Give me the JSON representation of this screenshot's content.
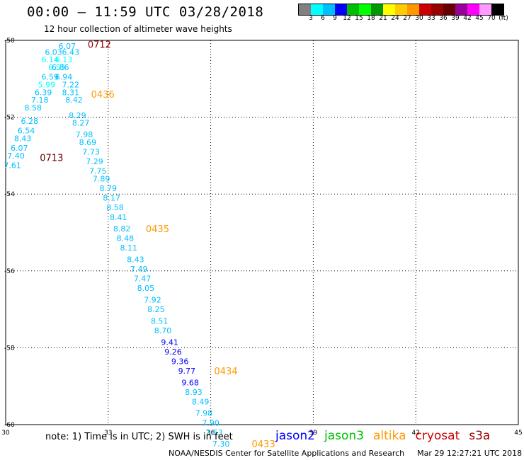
{
  "header": {
    "title": "00:00 – 11:59 UTC 03/28/2018",
    "subtitle": "12 hour collection of altimeter wave heights"
  },
  "colorbar": {
    "colors": [
      "#808080",
      "#00ffff",
      "#00bfff",
      "#0000ff",
      "#00bf00",
      "#00ff00",
      "#009900",
      "#ffff00",
      "#ffcc00",
      "#ff9900",
      "#cc0000",
      "#990000",
      "#660000",
      "#990099",
      "#ff00ff",
      "#ff99ff",
      "#000000"
    ],
    "labels": [
      "3",
      "6",
      "9",
      "12",
      "15",
      "18",
      "21",
      "24",
      "27",
      "30",
      "33",
      "36",
      "39",
      "42",
      "45",
      "70"
    ],
    "unit": "(ft)"
  },
  "note": "note:  1) Time is in UTC;  2) SWH is in feet",
  "legend": [
    {
      "name": "jason2",
      "color": "#0000ff"
    },
    {
      "name": "jason3",
      "color": "#00bf00"
    },
    {
      "name": "altika",
      "color": "#ff9900"
    },
    {
      "name": "cryosat",
      "color": "#cc0000"
    },
    {
      "name": "s3a",
      "color": "#990000"
    }
  ],
  "footer": {
    "credit": "NOAA/NESDIS Center for Satellite Applications and Research",
    "timestamp": "Mar 29 12:27:21 UTC 2018"
  },
  "chart_data": {
    "type": "scatter",
    "title": "12 hour collection of altimeter wave heights",
    "xlim": [
      30,
      45
    ],
    "ylim": [
      -60,
      -50
    ],
    "xticks": [
      30,
      33,
      36,
      39,
      42,
      45
    ],
    "yticks": [
      -50,
      -52,
      -54,
      -56,
      -58,
      -60
    ],
    "grid": true,
    "points": [
      {
        "lon": 31.8,
        "lat": -50.15,
        "swh": "6.07",
        "c": "#00bfff"
      },
      {
        "lon": 31.4,
        "lat": -50.3,
        "swh": "6.03",
        "c": "#00bfff"
      },
      {
        "lon": 31.9,
        "lat": -50.3,
        "swh": "6.43",
        "c": "#00bfff"
      },
      {
        "lon": 31.3,
        "lat": -50.5,
        "swh": "6.14",
        "c": "#00ffff"
      },
      {
        "lon": 31.7,
        "lat": -50.5,
        "swh": "6.13",
        "c": "#00ffff"
      },
      {
        "lon": 31.5,
        "lat": -50.7,
        "swh": "6.55",
        "c": "#00ffff"
      },
      {
        "lon": 31.6,
        "lat": -50.7,
        "swh": "6.86",
        "c": "#00bfff"
      },
      {
        "lon": 31.3,
        "lat": -50.95,
        "swh": "6.59",
        "c": "#00bfff"
      },
      {
        "lon": 31.7,
        "lat": -50.95,
        "swh": "6.94",
        "c": "#00bfff"
      },
      {
        "lon": 31.2,
        "lat": -51.15,
        "swh": "5.99",
        "c": "#00ffff"
      },
      {
        "lon": 31.9,
        "lat": -51.15,
        "swh": "7.22",
        "c": "#00bfff"
      },
      {
        "lon": 31.1,
        "lat": -51.35,
        "swh": "6.39",
        "c": "#00bfff"
      },
      {
        "lon": 31.9,
        "lat": -51.35,
        "swh": "8.31",
        "c": "#00bfff"
      },
      {
        "lon": 31.0,
        "lat": -51.55,
        "swh": "7.18",
        "c": "#00bfff"
      },
      {
        "lon": 32.0,
        "lat": -51.55,
        "swh": "8.42",
        "c": "#00bfff"
      },
      {
        "lon": 30.8,
        "lat": -51.75,
        "swh": "8.58",
        "c": "#00bfff"
      },
      {
        "lon": 32.1,
        "lat": -51.95,
        "swh": "8.29",
        "c": "#00bfff"
      },
      {
        "lon": 30.7,
        "lat": -52.1,
        "swh": "6.28",
        "c": "#00bfff"
      },
      {
        "lon": 32.2,
        "lat": -52.15,
        "swh": "8.27",
        "c": "#00bfff"
      },
      {
        "lon": 30.6,
        "lat": -52.35,
        "swh": "6.54",
        "c": "#00bfff"
      },
      {
        "lon": 32.3,
        "lat": -52.45,
        "swh": "7.98",
        "c": "#00bfff"
      },
      {
        "lon": 30.5,
        "lat": -52.55,
        "swh": "8.43",
        "c": "#00bfff"
      },
      {
        "lon": 32.4,
        "lat": -52.65,
        "swh": "8.69",
        "c": "#00bfff"
      },
      {
        "lon": 30.4,
        "lat": -52.8,
        "swh": "6.07",
        "c": "#00bfff"
      },
      {
        "lon": 32.5,
        "lat": -52.9,
        "swh": "7.73",
        "c": "#00bfff"
      },
      {
        "lon": 30.3,
        "lat": -53.0,
        "swh": "7.40",
        "c": "#00bfff"
      },
      {
        "lon": 32.6,
        "lat": -53.15,
        "swh": "7.29",
        "c": "#00bfff"
      },
      {
        "lon": 30.2,
        "lat": -53.25,
        "swh": "7.61",
        "c": "#00bfff"
      },
      {
        "lon": 32.7,
        "lat": -53.4,
        "swh": "7.75",
        "c": "#00bfff"
      },
      {
        "lon": 32.8,
        "lat": -53.6,
        "swh": "7.89",
        "c": "#00bfff"
      },
      {
        "lon": 33.0,
        "lat": -53.85,
        "swh": "8.79",
        "c": "#00bfff"
      },
      {
        "lon": 33.1,
        "lat": -54.1,
        "swh": "8.17",
        "c": "#00bfff"
      },
      {
        "lon": 33.2,
        "lat": -54.35,
        "swh": "8.58",
        "c": "#00bfff"
      },
      {
        "lon": 33.3,
        "lat": -54.6,
        "swh": "8.41",
        "c": "#00bfff"
      },
      {
        "lon": 33.4,
        "lat": -54.9,
        "swh": "8.82",
        "c": "#00bfff"
      },
      {
        "lon": 33.5,
        "lat": -55.15,
        "swh": "8.48",
        "c": "#00bfff"
      },
      {
        "lon": 33.6,
        "lat": -55.4,
        "swh": "8.11",
        "c": "#00bfff"
      },
      {
        "lon": 33.8,
        "lat": -55.7,
        "swh": "8.43",
        "c": "#00bfff"
      },
      {
        "lon": 33.9,
        "lat": -55.95,
        "swh": "7.49",
        "c": "#00bfff"
      },
      {
        "lon": 34.0,
        "lat": -56.2,
        "swh": "7.47",
        "c": "#00bfff"
      },
      {
        "lon": 34.1,
        "lat": -56.45,
        "swh": "8.05",
        "c": "#00bfff"
      },
      {
        "lon": 34.3,
        "lat": -56.75,
        "swh": "7.92",
        "c": "#00bfff"
      },
      {
        "lon": 34.4,
        "lat": -57.0,
        "swh": "8.25",
        "c": "#00bfff"
      },
      {
        "lon": 34.5,
        "lat": -57.3,
        "swh": "8.51",
        "c": "#00bfff"
      },
      {
        "lon": 34.6,
        "lat": -57.55,
        "swh": "8.70",
        "c": "#00bfff"
      },
      {
        "lon": 34.8,
        "lat": -57.85,
        "swh": "9.41",
        "c": "#0000ff"
      },
      {
        "lon": 34.9,
        "lat": -58.1,
        "swh": "9.26",
        "c": "#0000ff"
      },
      {
        "lon": 35.1,
        "lat": -58.35,
        "swh": "9.36",
        "c": "#0000ff"
      },
      {
        "lon": 35.3,
        "lat": -58.6,
        "swh": "9.77",
        "c": "#0000ff"
      },
      {
        "lon": 35.4,
        "lat": -58.9,
        "swh": "9.68",
        "c": "#0000ff"
      },
      {
        "lon": 35.5,
        "lat": -59.15,
        "swh": "8.93",
        "c": "#00bfff"
      },
      {
        "lon": 35.7,
        "lat": -59.4,
        "swh": "8.49",
        "c": "#00bfff"
      },
      {
        "lon": 35.8,
        "lat": -59.7,
        "swh": "7.98",
        "c": "#00bfff"
      },
      {
        "lon": 36.0,
        "lat": -59.95,
        "swh": "7.90",
        "c": "#00bfff"
      },
      {
        "lon": 36.1,
        "lat": -60.2,
        "swh": "7.63",
        "c": "#00bfff"
      },
      {
        "lon": 36.3,
        "lat": -60.5,
        "swh": "7.30",
        "c": "#00bfff"
      }
    ],
    "time_labels": [
      {
        "lon": 32.4,
        "lat": -50.1,
        "text": "0712",
        "c": "#990000"
      },
      {
        "lon": 32.5,
        "lat": -51.4,
        "text": "0436",
        "c": "#ff9900"
      },
      {
        "lon": 31.0,
        "lat": -53.05,
        "text": "0713",
        "c": "#660000"
      },
      {
        "lon": 34.1,
        "lat": -54.9,
        "text": "0435",
        "c": "#ff9900"
      },
      {
        "lon": 36.1,
        "lat": -58.6,
        "text": "0434",
        "c": "#ff9900"
      },
      {
        "lon": 37.2,
        "lat": -60.5,
        "text": "0433",
        "c": "#ff9900"
      }
    ]
  }
}
